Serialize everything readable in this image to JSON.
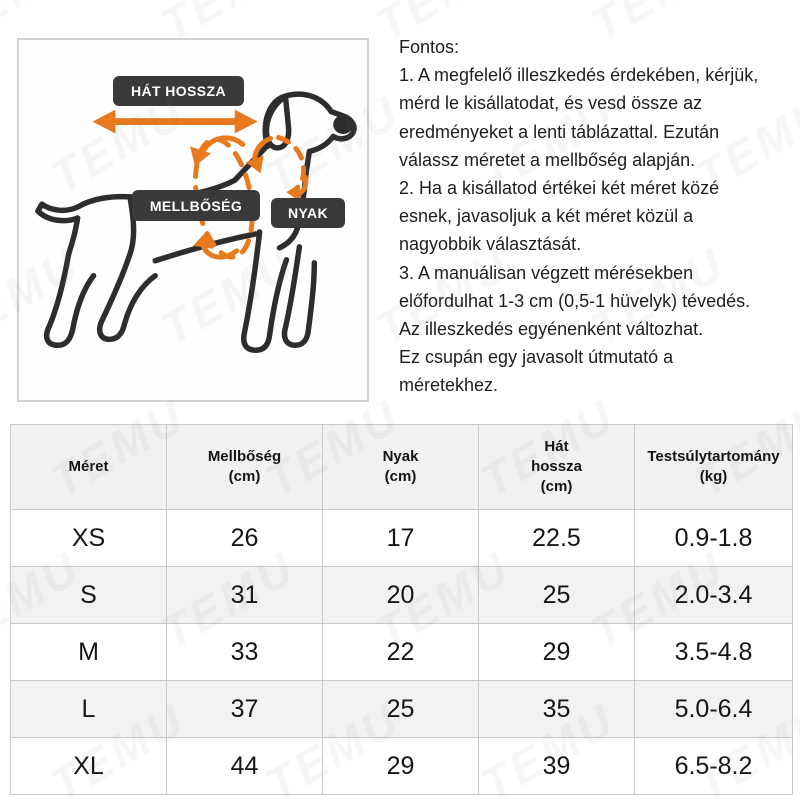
{
  "watermark": {
    "text": "TEMU"
  },
  "diagram": {
    "back_length_label": "HÁT HOSSZA",
    "chest_label": "MELLBŐSÉG",
    "neck_label": "NYAK",
    "accent_color": "#E8791C",
    "outline_color": "#2D2D2D",
    "label_bg_color": "#3A3A3A"
  },
  "notes": {
    "heading": "Fontos:",
    "body": "1. A megfelelő illeszkedés érdekében, kérjük,\nmérd le kisállatodat, és vesd össze az\neredményeket a lenti táblázattal. Ezután\nválassz méretet a mellbőség alapján.\n2. Ha a kisállatod értékei két méret közé\nesnek, javasoljuk a két méret közül a\nnagyobbik választását.\n3. A manuálisan végzett mérésekben\nelőfordulhat 1-3 cm (0,5-1 hüvelyk) tévedés.\nAz illeszkedés egyénenként változhat.\nEz csupán egy javasolt útmutató a\nméretekhez."
  },
  "size_table": {
    "columns": [
      "Méret",
      "Mellbőség\n(cm)",
      "Nyak\n(cm)",
      "Hát\nhossza\n(cm)",
      "Testsúlytartomány\n(kg)"
    ],
    "rows": [
      {
        "size": "XS",
        "chest": "26",
        "neck": "17",
        "back_length": "22.5",
        "weight_range": "0.9-1.8"
      },
      {
        "size": "S",
        "chest": "31",
        "neck": "20",
        "back_length": "25",
        "weight_range": "2.0-3.4"
      },
      {
        "size": "M",
        "chest": "33",
        "neck": "22",
        "back_length": "29",
        "weight_range": "3.5-4.8"
      },
      {
        "size": "L",
        "chest": "37",
        "neck": "25",
        "back_length": "35",
        "weight_range": "5.0-6.4"
      },
      {
        "size": "XL",
        "chest": "44",
        "neck": "29",
        "back_length": "39",
        "weight_range": "6.5-8.2"
      }
    ]
  }
}
